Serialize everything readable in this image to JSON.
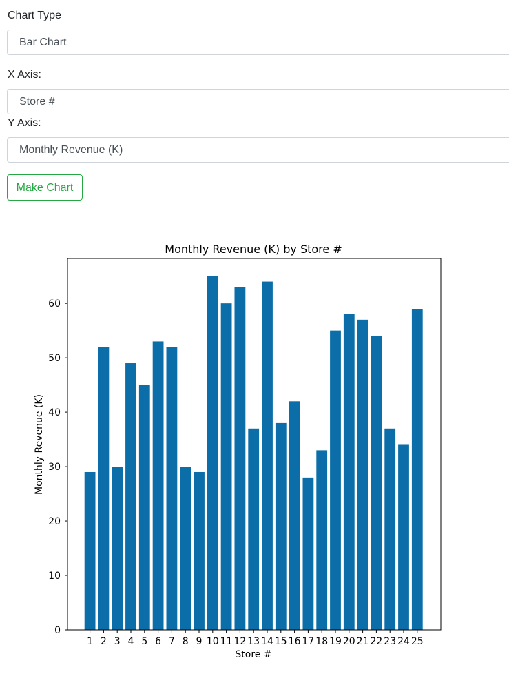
{
  "form": {
    "chart_type_label": "Chart Type",
    "chart_type_value": "Bar Chart",
    "x_axis_label": "X Axis:",
    "x_axis_value": "Store #",
    "y_axis_label": "Y Axis:",
    "y_axis_value": "Monthly Revenue (K)",
    "make_chart_label": "Make Chart"
  },
  "colors": {
    "bar": "#0b6ea8",
    "button_accent": "#28a745"
  },
  "chart_data": {
    "type": "bar",
    "title": "Monthly Revenue (K) by Store #",
    "xlabel": "Store #",
    "ylabel": "Monthly Revenue (K)",
    "categories": [
      "1",
      "2",
      "3",
      "4",
      "5",
      "6",
      "7",
      "8",
      "9",
      "10",
      "11",
      "12",
      "13",
      "14",
      "15",
      "16",
      "17",
      "18",
      "19",
      "20",
      "21",
      "22",
      "23",
      "24",
      "25"
    ],
    "values": [
      29,
      52,
      30,
      49,
      45,
      53,
      52,
      30,
      29,
      65,
      60,
      63,
      37,
      64,
      38,
      42,
      28,
      33,
      55,
      58,
      57,
      54,
      37,
      34,
      59
    ],
    "ylim": [
      0,
      68.25
    ],
    "yticks": [
      0,
      10,
      20,
      30,
      40,
      50,
      60
    ],
    "grid": false,
    "legend": "none"
  }
}
